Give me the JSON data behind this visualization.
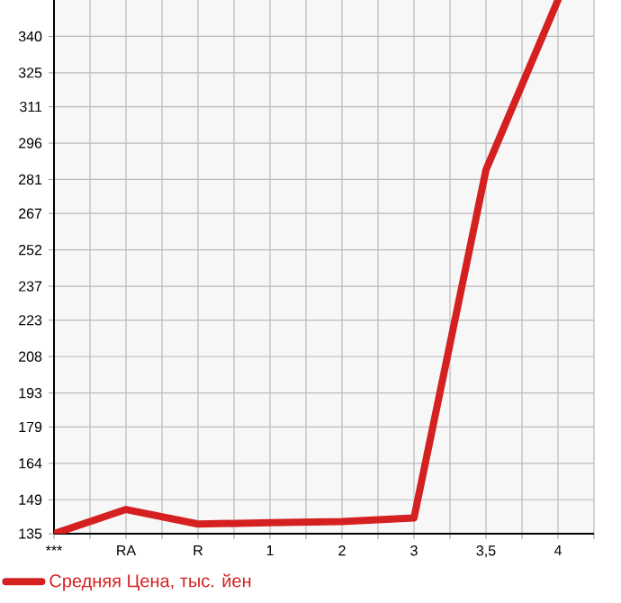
{
  "chart_data": {
    "type": "line",
    "categories": [
      "***",
      "RA",
      "R",
      "1",
      "2",
      "3",
      "3,5",
      "4"
    ],
    "series": [
      {
        "name": "Средняя Цена, тыс. йен",
        "color": "#d42020",
        "values": [
          135,
          145,
          139,
          139.5,
          140,
          141.5,
          285,
          355
        ]
      }
    ],
    "ylim": [
      135,
      355
    ],
    "yticks": [
      135,
      149,
      164,
      179,
      193,
      208,
      223,
      237,
      252,
      267,
      281,
      296,
      311,
      325,
      340
    ],
    "grid": true,
    "legend": "bottom left",
    "marker": "none",
    "line_style": "solid"
  }
}
